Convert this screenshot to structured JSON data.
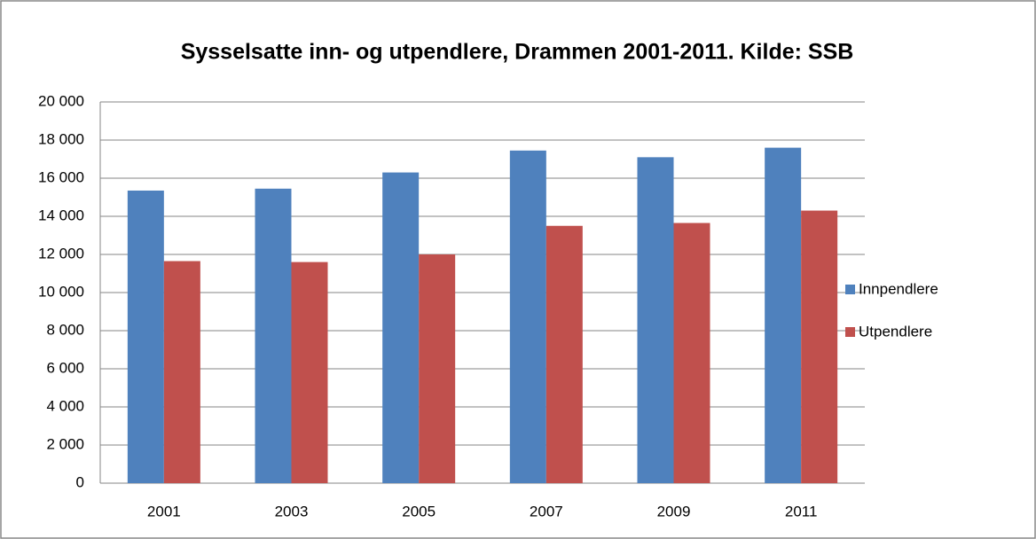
{
  "chart_data": {
    "type": "bar",
    "title": "Sysselsatte inn- og utpendlere, Drammen 2001-2011. Kilde: SSB",
    "categories": [
      "2001",
      "2003",
      "2005",
      "2007",
      "2009",
      "2011"
    ],
    "series": [
      {
        "name": "Innpendlere",
        "color": "#4f81bd",
        "values": [
          15350,
          15450,
          16300,
          17450,
          17100,
          17600
        ]
      },
      {
        "name": "Utpendlere",
        "color": "#c0504d",
        "values": [
          11650,
          11600,
          12000,
          13500,
          13650,
          14300
        ]
      }
    ],
    "ylim": [
      0,
      20000
    ],
    "yticks": [
      0,
      {
        "value": 2000,
        "label": "2 000"
      },
      {
        "value": 4000,
        "label": "4 000"
      },
      {
        "value": 6000,
        "label": "6 000"
      },
      {
        "value": 8000,
        "label": "8 000"
      },
      {
        "value": 10000,
        "label": "10 000"
      },
      {
        "value": 12000,
        "label": "12 000"
      },
      {
        "value": 14000,
        "label": "14 000"
      },
      {
        "value": 16000,
        "label": "16 000"
      },
      {
        "value": 18000,
        "label": "18 000"
      },
      {
        "value": 20000,
        "label": "20 000"
      }
    ],
    "grid": true,
    "legend": "right"
  }
}
